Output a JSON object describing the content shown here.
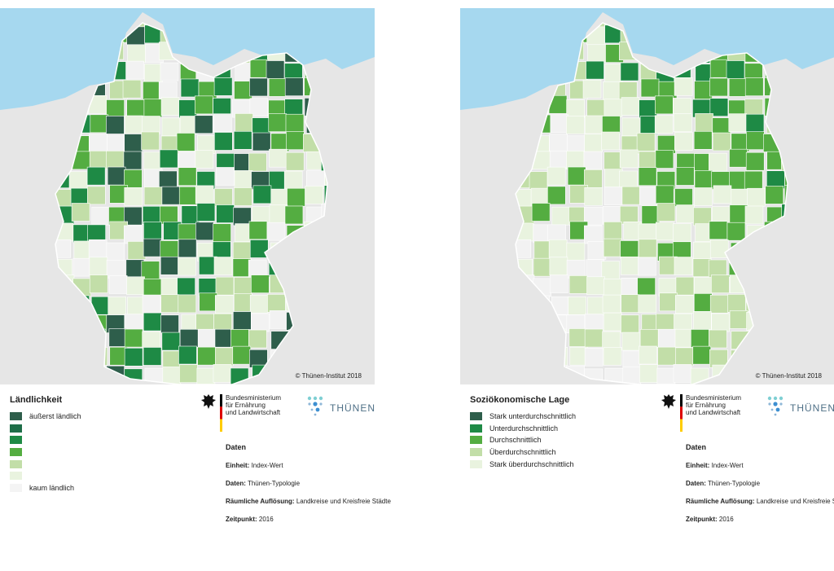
{
  "colors": {
    "sea": "#a6d8ef",
    "land_outside": "#e6e6e6",
    "border": "#ffffff",
    "class1": "#2e5e4b",
    "class2": "#1e8a45",
    "class3": "#54ad41",
    "class4": "#c2dea8",
    "class5": "#e9f3df",
    "class6": "#f2f2f2"
  },
  "left": {
    "copyright": "© Thünen-Institut 2018",
    "legend_title": "Ländlichkeit",
    "legend": [
      {
        "label": "äußerst ländlich",
        "color": "#2e5e4b"
      },
      {
        "label": "",
        "color": "#1e6e48"
      },
      {
        "label": "",
        "color": "#1e8a45"
      },
      {
        "label": "",
        "color": "#54ad41"
      },
      {
        "label": "",
        "color": "#c2dea8"
      },
      {
        "label": "",
        "color": "#e9f3df"
      },
      {
        "label": "kaum ländlich",
        "color": "#f4f4f4"
      }
    ]
  },
  "right": {
    "copyright": "© Thünen-Institut 2018",
    "legend_title": "Soziökonomische Lage",
    "legend": [
      {
        "label": "Stark unterdurchschnittlich",
        "color": "#2e5e4b"
      },
      {
        "label": "Unterdurchschnittlich",
        "color": "#1e8a45"
      },
      {
        "label": "Durchschnittlich",
        "color": "#54ad41"
      },
      {
        "label": "Überdurchschnittlich",
        "color": "#c2dea8"
      },
      {
        "label": "Stark überdurchschnittlich",
        "color": "#e9f3df"
      }
    ]
  },
  "ministry": {
    "line1": "Bundesministerium",
    "line2": "für Ernährung",
    "line3": "und Landwirtschaft"
  },
  "thunen": {
    "wordmark": "THÜNEN"
  },
  "daten": {
    "heading": "Daten",
    "einheit_label": "Einheit:",
    "einheit_value": "Index-Wert",
    "daten_label": "Daten:",
    "daten_value": "Thünen-Typologie",
    "aufloesung_label": "Räumliche Auflösung:",
    "aufloesung_value": "Landkreise und Kreisfreie Städte",
    "zeitpunkt_label": "Zeitpunkt:",
    "zeitpunkt_value": "2016"
  }
}
